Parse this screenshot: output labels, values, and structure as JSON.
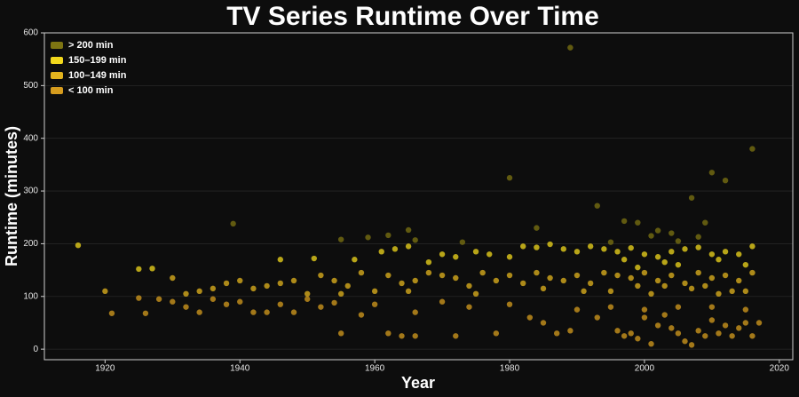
{
  "chart_data": {
    "type": "scatter",
    "title": "TV Series Runtime Over Time",
    "x_label": "Year",
    "y_label": "Runtime (minutes)",
    "xlim": [
      1911,
      2022
    ],
    "ylim": [
      -20,
      600
    ],
    "xticks": [
      1920,
      1940,
      1960,
      1980,
      2000,
      2020
    ],
    "yticks": [
      0,
      100,
      200,
      300,
      400,
      500,
      600
    ],
    "grid": true,
    "legend": "upper left",
    "series": [
      {
        "name": "> 200 min",
        "color": "#7d7412",
        "x": [
          1939,
          1955,
          1959,
          1962,
          1965,
          1966,
          1973,
          1980,
          1984,
          1989,
          1993,
          1995,
          1997,
          1999,
          2001,
          2002,
          2004,
          2005,
          2007,
          2008,
          2009,
          2010,
          2012,
          2016
        ],
        "y": [
          238,
          208,
          212,
          216,
          226,
          207,
          203,
          325,
          230,
          572,
          272,
          203,
          243,
          240,
          215,
          225,
          220,
          205,
          287,
          213,
          240,
          335,
          320,
          380
        ]
      },
      {
        "name": "150–199 min",
        "color": "#f2d81c",
        "x": [
          1916,
          1925,
          1927,
          1946,
          1951,
          1957,
          1961,
          1963,
          1965,
          1968,
          1970,
          1972,
          1975,
          1977,
          1980,
          1982,
          1984,
          1986,
          1988,
          1990,
          1992,
          1994,
          1996,
          1998,
          2000,
          2002,
          2004,
          2006,
          2008,
          2010,
          2012,
          2014,
          2016,
          1997,
          2003,
          2011,
          2015,
          1999,
          2005
        ],
        "y": [
          197,
          152,
          153,
          170,
          172,
          170,
          185,
          190,
          195,
          165,
          180,
          175,
          185,
          180,
          175,
          195,
          193,
          199,
          190,
          185,
          195,
          190,
          185,
          192,
          180,
          175,
          185,
          190,
          193,
          180,
          185,
          180,
          195,
          170,
          165,
          170,
          160,
          155,
          160
        ]
      },
      {
        "name": "100–149 min",
        "color": "#e3b41e",
        "x": [
          1920,
          1930,
          1932,
          1934,
          1936,
          1938,
          1940,
          1942,
          1944,
          1946,
          1948,
          1950,
          1952,
          1954,
          1956,
          1958,
          1960,
          1962,
          1964,
          1966,
          1968,
          1970,
          1972,
          1974,
          1976,
          1978,
          1980,
          1982,
          1984,
          1986,
          1988,
          1990,
          1992,
          1994,
          1996,
          1998,
          2000,
          2002,
          2004,
          2006,
          2008,
          2010,
          2012,
          2014,
          2016,
          1995,
          2001,
          2007,
          2013,
          1985,
          1975,
          1965,
          1955,
          2003,
          2009,
          2011,
          2015,
          1999,
          1991
        ],
        "y": [
          110,
          135,
          105,
          110,
          115,
          125,
          130,
          115,
          120,
          125,
          130,
          105,
          140,
          130,
          120,
          145,
          110,
          140,
          125,
          130,
          145,
          140,
          135,
          120,
          145,
          130,
          140,
          125,
          145,
          135,
          130,
          140,
          125,
          145,
          140,
          135,
          145,
          130,
          140,
          125,
          145,
          135,
          140,
          130,
          145,
          110,
          105,
          115,
          110,
          115,
          105,
          110,
          105,
          120,
          120,
          105,
          110,
          120,
          110
        ]
      },
      {
        "name": "< 100 min",
        "color": "#d69c1e",
        "x": [
          1921,
          1925,
          1926,
          1928,
          1930,
          1932,
          1934,
          1936,
          1938,
          1940,
          1942,
          1944,
          1946,
          1948,
          1950,
          1952,
          1954,
          1955,
          1958,
          1960,
          1962,
          1964,
          1966,
          1966,
          1970,
          1972,
          1974,
          1978,
          1980,
          1983,
          1985,
          1987,
          1989,
          1990,
          1993,
          1996,
          1997,
          1998,
          1999,
          2000,
          2001,
          2002,
          2003,
          2004,
          2005,
          2006,
          2007,
          2008,
          2009,
          2010,
          2011,
          2012,
          2013,
          2014,
          2015,
          2016,
          2017,
          1995,
          2000,
          2005,
          2010,
          2015
        ],
        "y": [
          68,
          97,
          68,
          95,
          90,
          80,
          70,
          95,
          85,
          90,
          70,
          70,
          85,
          70,
          95,
          80,
          88,
          30,
          65,
          85,
          30,
          25,
          25,
          70,
          90,
          25,
          80,
          30,
          85,
          60,
          50,
          30,
          35,
          75,
          60,
          35,
          25,
          30,
          20,
          60,
          10,
          45,
          65,
          40,
          30,
          15,
          8,
          35,
          25,
          55,
          30,
          45,
          25,
          40,
          50,
          25,
          50,
          80,
          75,
          80,
          80,
          75
        ]
      }
    ]
  }
}
